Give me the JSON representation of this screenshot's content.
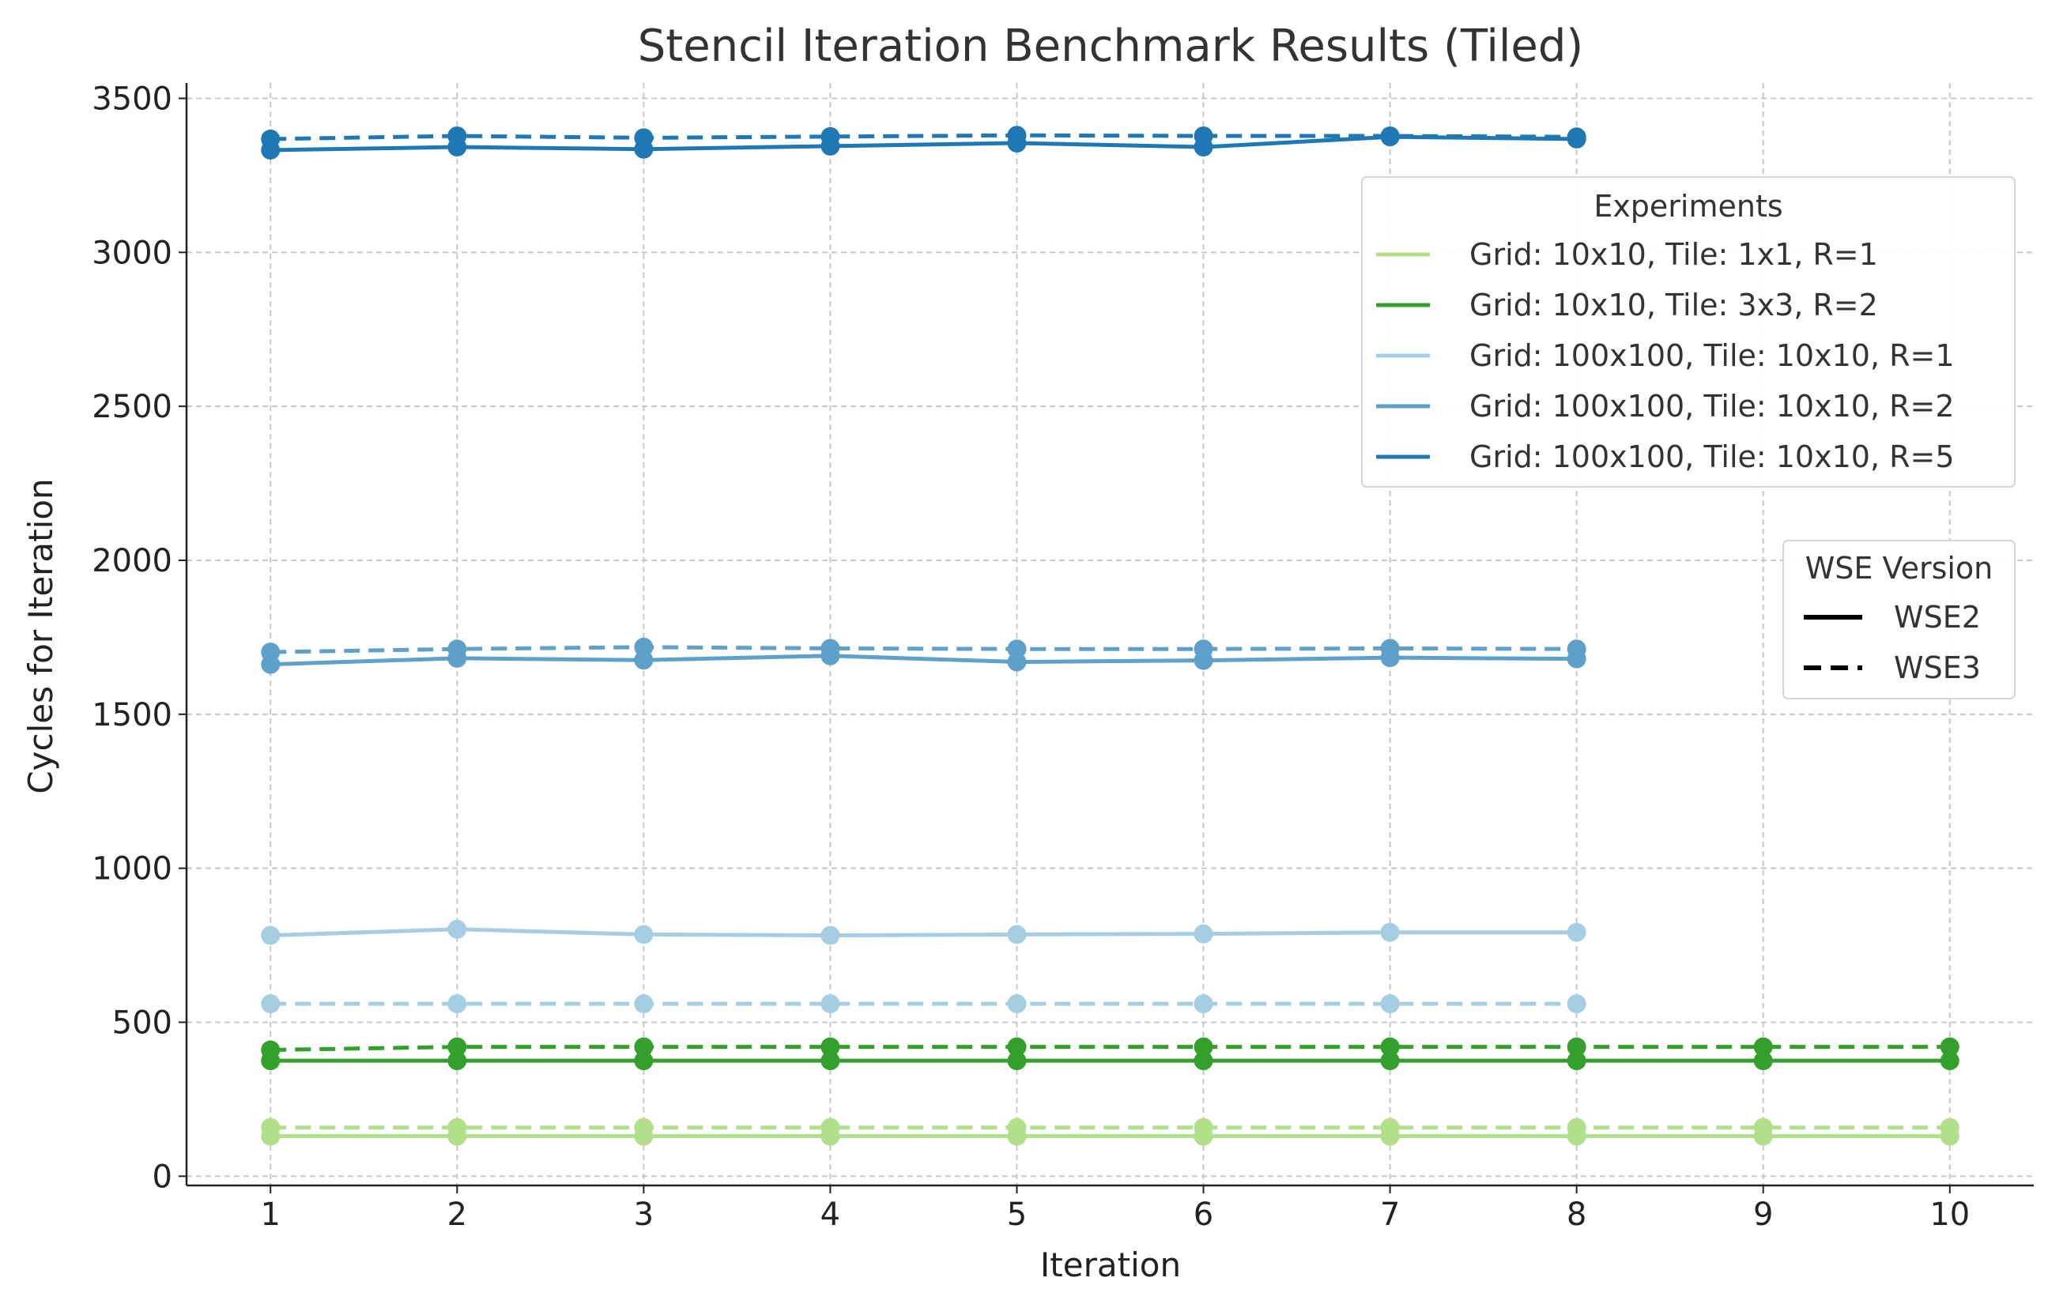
{
  "chart_data": {
    "type": "line",
    "title": "Stencil Iteration Benchmark Results (Tiled)",
    "xlabel": "Iteration",
    "ylabel": "Cycles for Iteration",
    "xlim": [
      0.55,
      10.45
    ],
    "ylim": [
      -30,
      3550
    ],
    "xticks": [
      1,
      2,
      3,
      4,
      5,
      6,
      7,
      8,
      9,
      10
    ],
    "yticks": [
      0,
      500,
      1000,
      1500,
      2000,
      2500,
      3000,
      3500
    ],
    "grid": true,
    "legends": [
      {
        "title": "Experiments",
        "placement": "upper right",
        "entries": [
          {
            "label": "Grid: 10x10, Tile: 1x1, R=1",
            "color": "#b2df8a"
          },
          {
            "label": "Grid: 10x10, Tile: 3x3, R=2",
            "color": "#33a02c"
          },
          {
            "label": "Grid: 100x100, Tile: 10x10, R=1",
            "color": "#a6cee3"
          },
          {
            "label": "Grid: 100x100, Tile: 10x10, R=2",
            "color": "#5fa0ca"
          },
          {
            "label": "Grid: 100x100, Tile: 10x10, R=5",
            "color": "#1f78b4"
          }
        ]
      },
      {
        "title": "WSE Version",
        "placement": "center right",
        "entries": [
          {
            "label": "WSE2",
            "style": "solid",
            "color": "#000000"
          },
          {
            "label": "WSE3",
            "style": "dashed",
            "color": "#000000"
          }
        ]
      }
    ],
    "series": [
      {
        "experiment": "Grid: 10x10, Tile: 1x1, R=1",
        "version": "WSE2",
        "color": "#b2df8a",
        "style": "solid",
        "x": [
          1,
          2,
          3,
          4,
          5,
          6,
          7,
          8,
          9,
          10
        ],
        "y": [
          130,
          130,
          130,
          130,
          130,
          130,
          130,
          130,
          130,
          130
        ]
      },
      {
        "experiment": "Grid: 10x10, Tile: 1x1, R=1",
        "version": "WSE3",
        "color": "#b2df8a",
        "style": "dashed",
        "x": [
          1,
          2,
          3,
          4,
          5,
          6,
          7,
          8,
          9,
          10
        ],
        "y": [
          158,
          158,
          158,
          158,
          158,
          158,
          158,
          158,
          158,
          158
        ]
      },
      {
        "experiment": "Grid: 10x10, Tile: 3x3, R=2",
        "version": "WSE2",
        "color": "#33a02c",
        "style": "solid",
        "x": [
          1,
          2,
          3,
          4,
          5,
          6,
          7,
          8,
          9,
          10
        ],
        "y": [
          375,
          375,
          375,
          375,
          375,
          375,
          375,
          375,
          375,
          375
        ]
      },
      {
        "experiment": "Grid: 10x10, Tile: 3x3, R=2",
        "version": "WSE3",
        "color": "#33a02c",
        "style": "dashed",
        "x": [
          1,
          2,
          3,
          4,
          5,
          6,
          7,
          8,
          9,
          10
        ],
        "y": [
          410,
          420,
          420,
          420,
          420,
          420,
          420,
          420,
          420,
          420
        ]
      },
      {
        "experiment": "Grid: 100x100, Tile: 10x10, R=1",
        "version": "WSE2",
        "color": "#a6cee3",
        "style": "solid",
        "x": [
          1,
          2,
          3,
          4,
          5,
          6,
          7,
          8
        ],
        "y": [
          782,
          802,
          785,
          782,
          785,
          787,
          792,
          792
        ]
      },
      {
        "experiment": "Grid: 100x100, Tile: 10x10, R=1",
        "version": "WSE3",
        "color": "#a6cee3",
        "style": "dashed",
        "x": [
          1,
          2,
          3,
          4,
          5,
          6,
          7,
          8
        ],
        "y": [
          560,
          560,
          560,
          560,
          560,
          560,
          560,
          560
        ]
      },
      {
        "experiment": "Grid: 100x100, Tile: 10x10, R=2",
        "version": "WSE2",
        "color": "#5fa0ca",
        "style": "solid",
        "x": [
          1,
          2,
          3,
          4,
          5,
          6,
          7,
          8
        ],
        "y": [
          1662,
          1682,
          1676,
          1690,
          1670,
          1675,
          1684,
          1680
        ]
      },
      {
        "experiment": "Grid: 100x100, Tile: 10x10, R=2",
        "version": "WSE3",
        "color": "#5fa0ca",
        "style": "dashed",
        "x": [
          1,
          2,
          3,
          4,
          5,
          6,
          7,
          8
        ],
        "y": [
          1702,
          1712,
          1718,
          1714,
          1712,
          1712,
          1714,
          1712
        ]
      },
      {
        "experiment": "Grid: 100x100, Tile: 10x10, R=5",
        "version": "WSE2",
        "color": "#1f78b4",
        "style": "solid",
        "x": [
          1,
          2,
          3,
          4,
          5,
          6,
          7,
          8
        ],
        "y": [
          3332,
          3342,
          3335,
          3345,
          3355,
          3342,
          3375,
          3368
        ]
      },
      {
        "experiment": "Grid: 100x100, Tile: 10x10, R=5",
        "version": "WSE3",
        "color": "#1f78b4",
        "style": "dashed",
        "x": [
          1,
          2,
          3,
          4,
          5,
          6,
          7,
          8
        ],
        "y": [
          3368,
          3378,
          3372,
          3376,
          3380,
          3378,
          3378,
          3375
        ]
      }
    ]
  }
}
